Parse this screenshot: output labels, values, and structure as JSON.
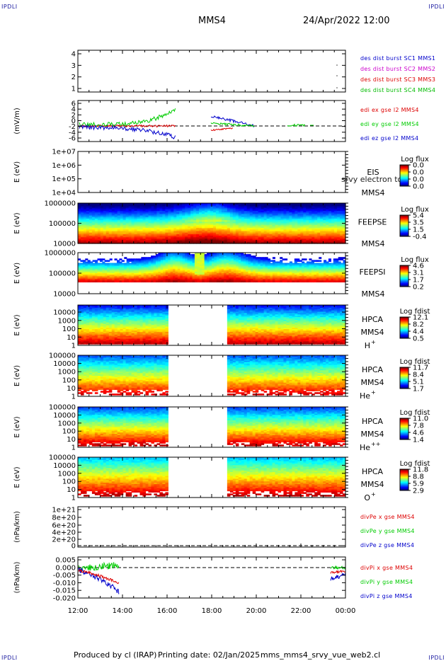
{
  "corner_mark": "IPDLI",
  "header": {
    "spacecraft": "MMS4",
    "datetime": "24/Apr/2022 12:00"
  },
  "footer": {
    "produced_by": "Produced by cl (IRAP)",
    "printing_date": "Printing date: 02/Jan/2025",
    "filename": "mms_mms4_srvy_vue_web2.cl"
  },
  "colors": {
    "mms1": "#0000cc",
    "mms2": "#cc00cc",
    "mms3": "#dd0000",
    "mms4": "#00bb00",
    "x": "#dd0000",
    "y": "#00cc00",
    "z": "#0000cc"
  },
  "chart_data": {
    "type": "multi-panel time series",
    "x": {
      "tick_labels": [
        "12:00",
        "14:00",
        "16:00",
        "18:00",
        "20:00",
        "22:00",
        "00:00"
      ]
    },
    "panels": [
      {
        "id": "burst",
        "type": "line",
        "ylabel": "",
        "ytick_labels": [
          "4",
          "3",
          "2",
          "1"
        ],
        "legend": [
          "des dist burst SC1 MMS1",
          "des dist burst SC2 MMS2",
          "des dist burst SC3 MMS3",
          "des dist burst SC4 MMS4"
        ]
      },
      {
        "id": "edi",
        "type": "line",
        "ylabel": "(mV/m)",
        "ytick_labels": [
          "6",
          "4",
          "2",
          "0",
          "-2",
          "-4",
          "-6"
        ],
        "legend": [
          "edi ex gse l2 MMS4",
          "edi ey gse l2 MMS4",
          "edi ez gse l2 MMS4"
        ]
      },
      {
        "id": "eis",
        "type": "heatmap",
        "ylabel": "E (eV)",
        "ytick_labels": [
          "1e+07",
          "1e+06",
          "1e+05",
          "1e+04"
        ],
        "side_labels": [
          "EIS",
          "MMS4"
        ],
        "overlay_text": "srvy electron to",
        "colorbar": {
          "title": "Log flux",
          "ticks": [
            "0.0",
            "0.0",
            "0.0",
            "0.0"
          ]
        }
      },
      {
        "id": "feepse",
        "type": "heatmap",
        "ylabel": "E (eV)",
        "ytick_labels": [
          "1000000",
          "100000",
          "10000"
        ],
        "side_labels": [
          "FEEPSE",
          "MMS4"
        ],
        "colorbar": {
          "title": "Log flux",
          "ticks": [
            "5.4",
            "3.5",
            "1.5",
            "-0.4"
          ]
        }
      },
      {
        "id": "feepsi",
        "type": "heatmap",
        "ylabel": "E (eV)",
        "ytick_labels": [
          "1000000",
          "100000",
          "10000"
        ],
        "side_labels": [
          "FEEPSI",
          "MMS4"
        ],
        "colorbar": {
          "title": "Log flux",
          "ticks": [
            "4.6",
            "3.1",
            "1.7",
            "0.2"
          ]
        }
      },
      {
        "id": "hpca_h",
        "type": "heatmap",
        "ylabel": "E (eV)",
        "ytick_labels": [
          "10000",
          "1000",
          "100",
          "10",
          "1"
        ],
        "side_labels": [
          "HPCA",
          "MMS4",
          "H",
          "+"
        ],
        "colorbar": {
          "title": "Log fdist",
          "ticks": [
            "12.1",
            "8.2",
            "4.4",
            "0.5"
          ]
        }
      },
      {
        "id": "hpca_he",
        "type": "heatmap",
        "ylabel": "E (eV)",
        "ytick_labels": [
          "100000",
          "10000",
          "1000",
          "100",
          "10",
          "1"
        ],
        "side_labels": [
          "HPCA",
          "MMS4",
          "He",
          "+"
        ],
        "colorbar": {
          "title": "Log fdist",
          "ticks": [
            "11.7",
            "8.4",
            "5.1",
            "1.7"
          ]
        }
      },
      {
        "id": "hpca_hepp",
        "type": "heatmap",
        "ylabel": "E (eV)",
        "ytick_labels": [
          "100000",
          "10000",
          "1000",
          "100",
          "10",
          "1"
        ],
        "side_labels": [
          "HPCA",
          "MMS4",
          "He",
          "++"
        ],
        "colorbar": {
          "title": "Log fdist",
          "ticks": [
            "11.0",
            "7.8",
            "4.6",
            "1.4"
          ]
        }
      },
      {
        "id": "hpca_o",
        "type": "heatmap",
        "ylabel": "E (eV)",
        "ytick_labels": [
          "100000",
          "10000",
          "1000",
          "100",
          "10",
          "1"
        ],
        "side_labels": [
          "HPCA",
          "MMS4",
          "O",
          "+"
        ],
        "colorbar": {
          "title": "Log fdist",
          "ticks": [
            "11.8",
            "8.8",
            "5.9",
            "2.9"
          ]
        }
      },
      {
        "id": "divpe",
        "type": "line",
        "ylabel": "(nPa/km)",
        "ytick_labels": [
          "1e+21",
          "8e+20",
          "6e+20",
          "4e+20",
          "2e+20",
          "0"
        ],
        "legend": [
          "divPe x gse MMS4",
          "divPe y gse MMS4",
          "divPe z gse MMS4"
        ]
      },
      {
        "id": "divpi",
        "type": "line",
        "ylabel": "(nPa/km)",
        "ytick_labels": [
          "0.005",
          "0.000",
          "-0.005",
          "-0.010",
          "-0.015",
          "-0.020"
        ],
        "legend": [
          "divPi x gse MMS4",
          "divPi y gse MMS4",
          "divPi z gse MMS4"
        ]
      }
    ]
  }
}
